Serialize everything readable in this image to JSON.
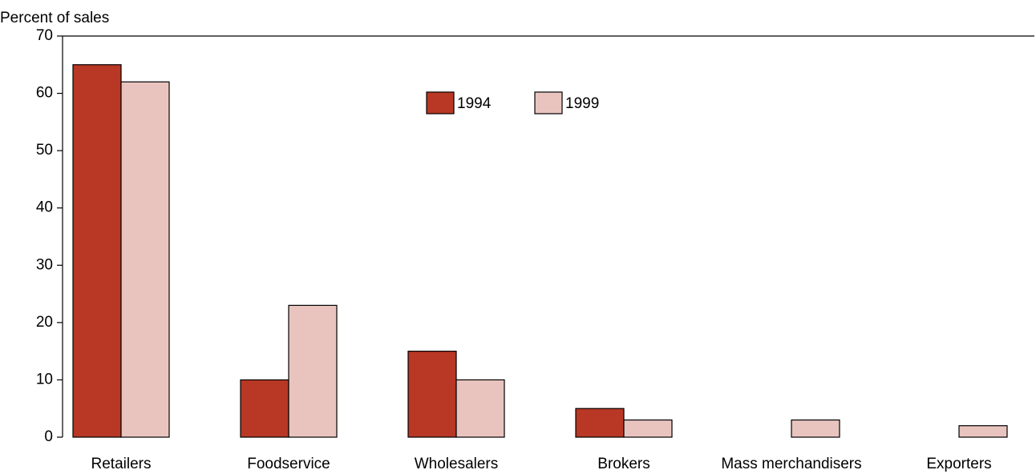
{
  "chart_data": {
    "type": "bar",
    "y_axis_label": "Percent of sales",
    "categories": [
      "Retailers",
      "Foodservice",
      "Wholesalers",
      "Brokers",
      "Mass merchandisers",
      "Exporters"
    ],
    "series": [
      {
        "name": "1994",
        "color": "#b83725",
        "values": [
          65,
          10,
          15,
          5,
          null,
          null
        ]
      },
      {
        "name": "1999",
        "color": "#e9c4bf",
        "values": [
          62,
          23,
          10,
          3,
          3,
          2
        ]
      }
    ],
    "ylim": [
      0,
      70
    ],
    "yticks": [
      0,
      10,
      20,
      30,
      40,
      50,
      60,
      70
    ]
  }
}
